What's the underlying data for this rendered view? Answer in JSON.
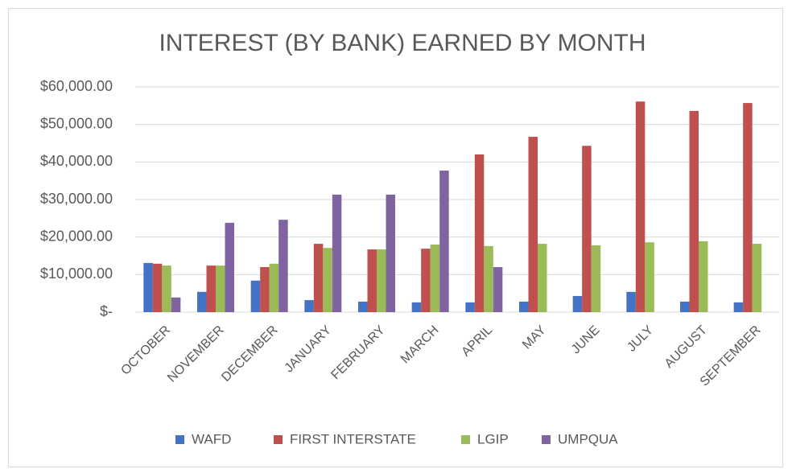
{
  "chart_data": {
    "type": "bar",
    "title": "INTEREST (BY BANK) EARNED BY MONTH",
    "categories": [
      "OCTOBER",
      "NOVEMBER",
      "DECEMBER",
      "JANUARY",
      "FEBRUARY",
      "MARCH",
      "APRIL",
      "MAY",
      "JUNE",
      "JULY",
      "AUGUST",
      "SEPTEMBER"
    ],
    "series": [
      {
        "name": "WAFD",
        "color": "#4472c4",
        "values": [
          13100,
          5400,
          8400,
          3200,
          2800,
          2600,
          2600,
          2800,
          4300,
          5400,
          2800,
          2600
        ]
      },
      {
        "name": "FIRST INTERSTATE",
        "color": "#c0504d",
        "values": [
          12900,
          12400,
          12000,
          18200,
          16700,
          16900,
          42000,
          46700,
          44300,
          56100,
          53600,
          55700
        ]
      },
      {
        "name": "LGIP",
        "color": "#9bbb59",
        "values": [
          12400,
          12400,
          12900,
          17100,
          16700,
          18000,
          17600,
          18200,
          17800,
          18600,
          18900,
          18200
        ]
      },
      {
        "name": "UMPQUA",
        "color": "#8064a2",
        "values": [
          3900,
          23800,
          24600,
          31300,
          31300,
          37700,
          12000,
          null,
          null,
          null,
          null,
          null
        ]
      }
    ],
    "ylim": [
      0,
      60000
    ],
    "yticks": [
      {
        "value": 0,
        "label": "$-"
      },
      {
        "value": 10000,
        "label": "$10,000.00"
      },
      {
        "value": 20000,
        "label": "$20,000.00"
      },
      {
        "value": 30000,
        "label": "$30,000.00"
      },
      {
        "value": 40000,
        "label": "$40,000.00"
      },
      {
        "value": 50000,
        "label": "$50,000.00"
      },
      {
        "value": 60000,
        "label": "$60,000.00"
      }
    ],
    "grid": true,
    "legend": "bottom"
  }
}
